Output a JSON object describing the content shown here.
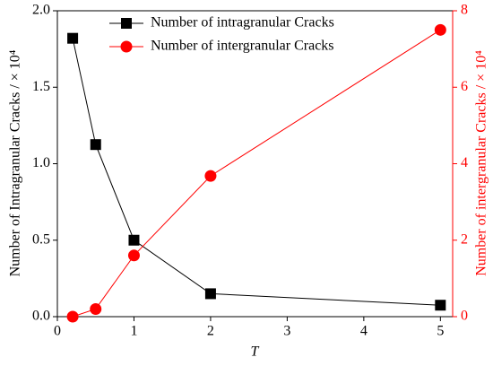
{
  "chart_data": {
    "type": "line",
    "x_label": "T",
    "y_label": "Number of Intragranular Cracks / × 10⁴",
    "y2_label": "Number of intergranular Cracks / × 10⁴",
    "xlim": [
      0,
      5.16
    ],
    "xticks": [
      0,
      1,
      2,
      3,
      4,
      5
    ],
    "ylim": [
      0,
      2
    ],
    "yticks": [
      {
        "value": 0,
        "label": "0.0"
      },
      {
        "value": 0.5,
        "label": "0.5"
      },
      {
        "value": 1,
        "label": "1.0"
      },
      {
        "value": 1.5,
        "label": "1.5"
      },
      {
        "value": 2,
        "label": "2.0"
      }
    ],
    "y2lim": [
      0,
      8
    ],
    "y2ticks": [
      0,
      2,
      4,
      6,
      8
    ],
    "y2_color": "#ff0000",
    "legend": "top",
    "series": [
      {
        "name": "Number of intragranular Cracks",
        "color": "#000000",
        "marker": "square",
        "x": [
          0.2,
          0.5,
          1,
          2,
          5
        ],
        "values": [
          1.82,
          1.125,
          0.5,
          0.15,
          0.075
        ]
      },
      {
        "name": "Number of intergranular Cracks",
        "color": "#ff0000",
        "marker": "circle",
        "axis": "y2",
        "x": [
          0.2,
          0.5,
          1,
          2,
          5
        ],
        "values": [
          0.0,
          0.2,
          1.6,
          3.68,
          7.5
        ]
      }
    ]
  }
}
